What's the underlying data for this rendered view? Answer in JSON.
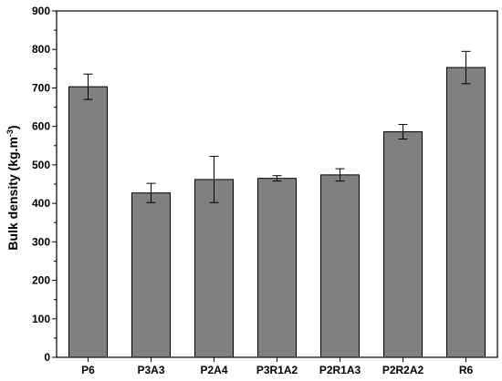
{
  "chart_data": {
    "type": "bar",
    "categories": [
      "P6",
      "P3A3",
      "P2A4",
      "P3R1A2",
      "P2R1A3",
      "P2R2A2",
      "R6"
    ],
    "values": [
      703,
      427,
      462,
      465,
      474,
      586,
      753
    ],
    "errors": [
      33,
      25,
      60,
      7,
      16,
      19,
      42
    ],
    "ylabel_main": "Bulk density (kg.m",
    "ylabel_sup": "-3",
    "ylabel_close": ")",
    "ylim": [
      0,
      900
    ],
    "yticks": [
      "0",
      "100",
      "200",
      "300",
      "400",
      "500",
      "600",
      "700",
      "800",
      "900"
    ],
    "grid": false,
    "bar_color": "#808080"
  }
}
